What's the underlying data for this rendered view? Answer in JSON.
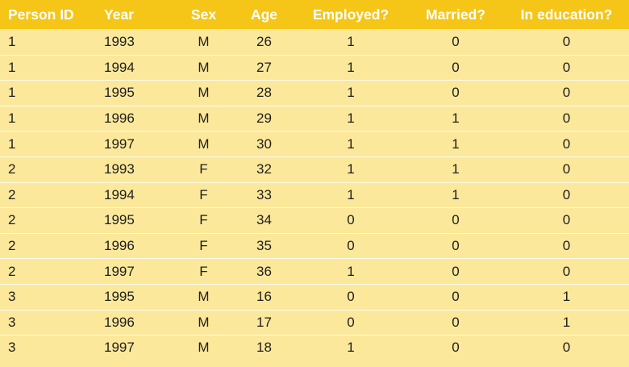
{
  "table": {
    "columns": [
      "Person ID",
      "Year",
      "Sex",
      "Age",
      "Employed?",
      "Married?",
      "In education?"
    ],
    "rows": [
      [
        "1",
        "1993",
        "M",
        "26",
        "1",
        "0",
        "0"
      ],
      [
        "1",
        "1994",
        "M",
        "27",
        "1",
        "0",
        "0"
      ],
      [
        "1",
        "1995",
        "M",
        "28",
        "1",
        "0",
        "0"
      ],
      [
        "1",
        "1996",
        "M",
        "29",
        "1",
        "1",
        "0"
      ],
      [
        "1",
        "1997",
        "M",
        "30",
        "1",
        "1",
        "0"
      ],
      [
        "2",
        "1993",
        "F",
        "32",
        "1",
        "1",
        "0"
      ],
      [
        "2",
        "1994",
        "F",
        "33",
        "1",
        "1",
        "0"
      ],
      [
        "2",
        "1995",
        "F",
        "34",
        "0",
        "0",
        "0"
      ],
      [
        "2",
        "1996",
        "F",
        "35",
        "0",
        "0",
        "0"
      ],
      [
        "2",
        "1997",
        "F",
        "36",
        "1",
        "0",
        "0"
      ],
      [
        "3",
        "1995",
        "M",
        "16",
        "0",
        "0",
        "1"
      ],
      [
        "3",
        "1996",
        "M",
        "17",
        "0",
        "0",
        "1"
      ],
      [
        "3",
        "1997",
        "M",
        "18",
        "1",
        "0",
        "0"
      ]
    ]
  },
  "colors": {
    "header_bg": "#f5c518",
    "row_bg": "#fce89a",
    "row_divider": "#fffbe9",
    "header_text": "#ffffff",
    "cell_text": "#1e1e1e"
  }
}
